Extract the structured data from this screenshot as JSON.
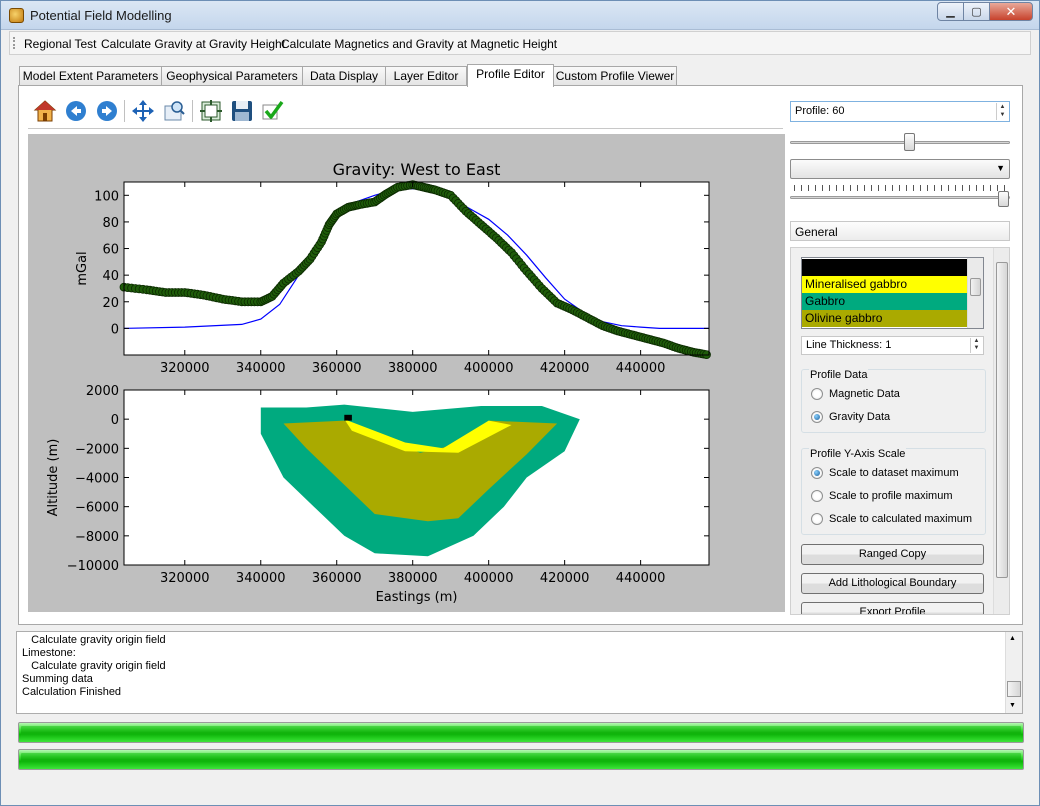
{
  "window": {
    "title": "Potential Field Modelling"
  },
  "menu": [
    "Regional Test",
    "Calculate Gravity at Gravity Height",
    "Calculate Magnetics and Gravity at Magnetic Height"
  ],
  "tabs": [
    "Model Extent Parameters",
    "Geophysical Parameters",
    "Data Display",
    "Layer Editor",
    "Profile Editor",
    "Custom Profile Viewer"
  ],
  "active_tab": "Profile Editor",
  "toolbar_icons": [
    "home-icon",
    "back-arrow-icon",
    "forward-arrow-icon",
    "pan-icon",
    "zoom-icon",
    "configure-subplots-icon",
    "save-icon",
    "apply-check-icon"
  ],
  "right_panel": {
    "profile_label": "Profile: 60",
    "general_label": "General",
    "layers": [
      {
        "name": "",
        "color": "#000000"
      },
      {
        "name": "Mineralised gabbro",
        "color": "#ffff00"
      },
      {
        "name": "Gabbro",
        "color": "#00aa7f"
      },
      {
        "name": "Olivine gabbro",
        "color": "#aaaa00"
      }
    ],
    "line_thickness": "Line Thickness: 1",
    "profile_data_title": "Profile Data",
    "profile_data_options": [
      "Magnetic Data",
      "Gravity Data"
    ],
    "profile_data_selected": "Gravity Data",
    "yaxis_title": "Profile Y-Axis Scale",
    "yaxis_options": [
      "Scale to dataset maximum",
      "Scale to profile maximum",
      "Scale to calculated maximum"
    ],
    "yaxis_selected": "Scale to dataset maximum",
    "buttons": [
      "Ranged Copy",
      "Add Lithological Boundary",
      "Export Profile"
    ]
  },
  "log_lines": [
    "   Calculate gravity origin field",
    "Limestone:",
    "   Calculate gravity origin field",
    "Summing data",
    "Calculation Finished"
  ],
  "progress": [
    1.0,
    1.0
  ],
  "chart_data": [
    {
      "type": "line",
      "title": "Gravity: West to East",
      "xlabel": "",
      "ylabel": "mGal",
      "xlim": [
        304000,
        458000
      ],
      "ylim": [
        -20,
        110
      ],
      "xticks": [
        "320000",
        "340000",
        "360000",
        "380000",
        "400000",
        "420000",
        "440000"
      ],
      "yticks": [
        "0",
        "20",
        "40",
        "60",
        "80",
        "100"
      ],
      "series": [
        {
          "color": "#0000ff",
          "x": [
            304000,
            320000,
            335000,
            340000,
            345000,
            350000,
            355000,
            360000,
            365000,
            370000,
            375000,
            380000,
            385000,
            390000,
            395000,
            400000,
            405000,
            410000,
            415000,
            420000,
            425000,
            430000,
            435000,
            440000,
            445000,
            458000
          ],
          "y": [
            0,
            1,
            3,
            7,
            18,
            40,
            65,
            85,
            95,
            100,
            104,
            105,
            103,
            98,
            90,
            82,
            70,
            55,
            38,
            22,
            12,
            5,
            2,
            1,
            0,
            0
          ]
        },
        {
          "marker": "circle",
          "color": "#1f5c0a",
          "x": [
            304000,
            310000,
            315000,
            320000,
            325000,
            330000,
            335000,
            340000,
            343000,
            346000,
            350000,
            353000,
            356000,
            358000,
            360000,
            363000,
            366000,
            370000,
            373000,
            376000,
            380000,
            383000,
            386000,
            390000,
            394000,
            398000,
            402000,
            406000,
            410000,
            414000,
            418000,
            422000,
            426000,
            430000,
            434000,
            438000,
            442000,
            446000,
            450000,
            454000,
            458000
          ],
          "y": [
            31,
            29,
            27,
            27,
            25,
            22,
            20,
            20,
            24,
            34,
            43,
            52,
            65,
            78,
            86,
            91,
            93,
            95,
            101,
            106,
            108,
            106,
            104,
            100,
            88,
            78,
            68,
            57,
            43,
            30,
            19,
            14,
            8,
            2,
            -2,
            -5,
            -8,
            -11,
            -15,
            -18,
            -20
          ]
        }
      ]
    },
    {
      "type": "heatmap",
      "xlabel": "Eastings (m)",
      "ylabel": "Altitude (m)",
      "xlim": [
        304000,
        458000
      ],
      "ylim": [
        -10000,
        2000
      ],
      "xticks": [
        "320000",
        "340000",
        "360000",
        "380000",
        "400000",
        "420000",
        "440000"
      ],
      "yticks": [
        "2000",
        "0",
        "−2000",
        "−4000",
        "−6000",
        "−8000",
        "−10000"
      ],
      "layers": [
        {
          "name": "Gabbro",
          "color": "#00aa7f",
          "outline": [
            [
              340000,
              800
            ],
            [
              352000,
              800
            ],
            [
              362000,
              1000
            ],
            [
              380000,
              500
            ],
            [
              398000,
              900
            ],
            [
              414000,
              900
            ],
            [
              424000,
              0
            ],
            [
              420000,
              -2200
            ],
            [
              410000,
              -4000
            ],
            [
              404000,
              -6000
            ],
            [
              396000,
              -8000
            ],
            [
              384000,
              -9400
            ],
            [
              370000,
              -9200
            ],
            [
              362000,
              -8000
            ],
            [
              354000,
              -6000
            ],
            [
              346000,
              -4000
            ],
            [
              340000,
              -1000
            ]
          ]
        },
        {
          "name": "Olivine gabbro",
          "color": "#aaaa00",
          "outline": [
            [
              346000,
              -300
            ],
            [
              362000,
              -100
            ],
            [
              372000,
              -1400
            ],
            [
              382000,
              -2300
            ],
            [
              392000,
              -1700
            ],
            [
              400000,
              -100
            ],
            [
              418000,
              -300
            ],
            [
              410000,
              -2400
            ],
            [
              400000,
              -4800
            ],
            [
              392000,
              -6800
            ],
            [
              384000,
              -7000
            ],
            [
              370000,
              -6500
            ],
            [
              360000,
              -4000
            ],
            [
              352000,
              -2000
            ]
          ]
        },
        {
          "name": "Mineralised gabbro",
          "color": "#ffff00",
          "outline": [
            [
              362000,
              0
            ],
            [
              378000,
              -1600
            ],
            [
              388000,
              -2000
            ],
            [
              400000,
              -100
            ],
            [
              406000,
              -400
            ],
            [
              392000,
              -2300
            ],
            [
              378000,
              -2200
            ],
            [
              364000,
              -800
            ]
          ]
        },
        {
          "name": "",
          "color": "#000000",
          "outline": [
            [
              362000,
              300
            ],
            [
              364000,
              300
            ],
            [
              364000,
              -100
            ],
            [
              362000,
              -100
            ]
          ]
        }
      ]
    }
  ]
}
